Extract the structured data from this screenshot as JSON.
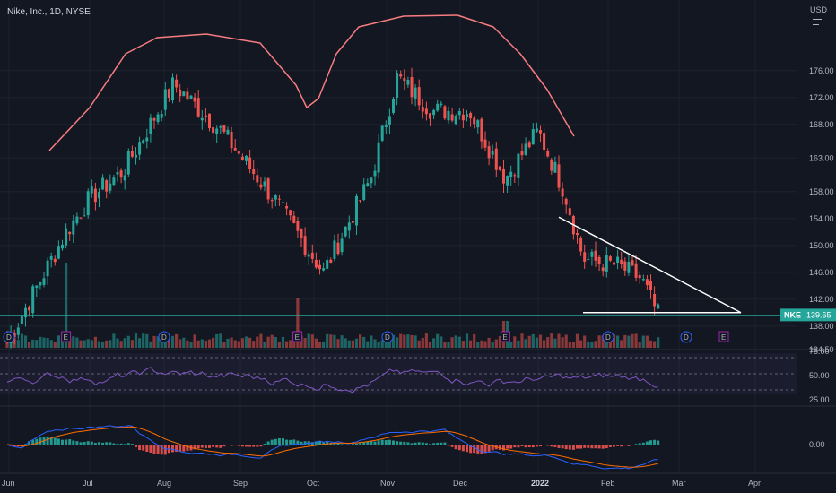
{
  "header": {
    "title": "Nike, Inc., 1D, NYSE",
    "currency": "USD"
  },
  "colors": {
    "background": "#131722",
    "up": "#26a69a",
    "down": "#ef5350",
    "envelope": "#f77c80",
    "rsi": "#7e57c2",
    "macd": "#2962ff",
    "signal": "#ff6d00",
    "annotation": "#ffffff",
    "price_line": "#26a69a"
  },
  "chart_data": [
    {
      "type": "candlestick",
      "panel": "price",
      "ticker": "NKE",
      "last_price": "139.65",
      "y_ticks": [
        "176.00",
        "172.00",
        "168.00",
        "163.00",
        "158.00",
        "154.00",
        "150.00",
        "146.00",
        "142.00",
        "138.00",
        "134.50"
      ],
      "x_ticks": [
        "Jun",
        "Jul",
        "Aug",
        "Sep",
        "Oct",
        "Nov",
        "Dec",
        "2022",
        "Feb",
        "Mar",
        "Apr"
      ],
      "key_points": [
        {
          "date": "Jun",
          "close": 136
        },
        {
          "date": "Jun 25",
          "close": 152
        },
        {
          "date": "Jul",
          "close": 157
        },
        {
          "date": "Jul 15",
          "close": 161
        },
        {
          "date": "Aug 5",
          "close": 174
        },
        {
          "date": "Aug 25",
          "close": 167
        },
        {
          "date": "Sep 15",
          "close": 157
        },
        {
          "date": "Oct 5",
          "close": 146
        },
        {
          "date": "Oct 25",
          "close": 160
        },
        {
          "date": "Nov 5",
          "close": 175
        },
        {
          "date": "Nov 20",
          "close": 170
        },
        {
          "date": "Dec 5",
          "close": 170
        },
        {
          "date": "Dec 20",
          "close": 160
        },
        {
          "date": "2022",
          "close": 167
        },
        {
          "date": "Jan 12",
          "close": 158
        },
        {
          "date": "Jan 20",
          "close": 148
        },
        {
          "date": "Feb 5",
          "close": 147
        },
        {
          "date": "Feb 15",
          "close": 145
        },
        {
          "date": "Feb 22",
          "close": 139.65
        }
      ],
      "earnings_markers": [
        "Jun",
        "Sep",
        "Dec"
      ],
      "dividend_markers": [
        "Jun",
        "Aug",
        "Nov",
        "Feb",
        "Mar"
      ],
      "annotations": [
        "descending triangle: resistance line from Jan high to ~Mar 25",
        "support line at ~140"
      ]
    },
    {
      "type": "line",
      "panel": "rsi",
      "y_ticks": [
        "75.00",
        "50.00",
        "25.00"
      ],
      "levels": [
        70,
        50,
        30
      ]
    },
    {
      "type": "histogram+line",
      "panel": "macd",
      "y_ticks": [
        "0.00"
      ]
    }
  ]
}
